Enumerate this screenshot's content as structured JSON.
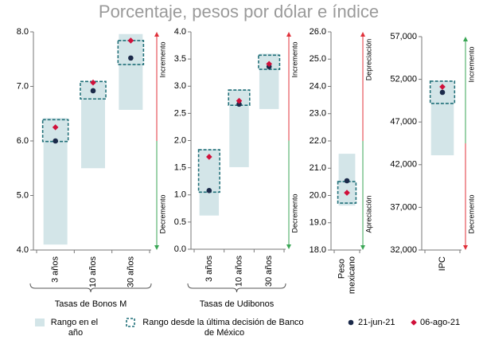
{
  "title": "Porcentaje, pesos por dólar e índice",
  "chart_data": [
    {
      "type": "range",
      "categories": [
        "3 años",
        "10 años",
        "30 años"
      ],
      "xlabel": "Tasas de Bonos M",
      "ylim": [
        4,
        8
      ],
      "yticks": [
        {
          "value": 4,
          "label": "4.0"
        },
        {
          "value": 5,
          "label": "5.0"
        },
        {
          "value": 6,
          "label": "6.0"
        },
        {
          "value": 7,
          "label": "7.0"
        },
        {
          "value": 8,
          "label": "8.0"
        }
      ],
      "up_label": "Incremento",
      "down_label": "Decremento",
      "up_color": "#e0303a",
      "down_color": "#3aa655",
      "series": [
        {
          "name": "Rango en el año",
          "marker": "bar",
          "color": "#d3e5e8",
          "values": [
            [
              4.1,
              6.42
            ],
            [
              5.5,
              7.09
            ],
            [
              6.57,
              7.96
            ]
          ]
        },
        {
          "name": "Rango desde la última decisión de Banco de México",
          "marker": "box",
          "color": "#1f6f78",
          "values": [
            [
              5.99,
              6.39
            ],
            [
              6.77,
              7.09
            ],
            [
              7.4,
              7.84
            ]
          ]
        },
        {
          "name": "21-jun-21",
          "marker": "circle",
          "color": "#1b2a4a",
          "values": [
            6.0,
            6.92,
            7.52
          ]
        },
        {
          "name": "06-ago-21",
          "marker": "diamond",
          "color": "#d0103a",
          "values": [
            6.25,
            7.07,
            7.84
          ]
        }
      ]
    },
    {
      "type": "range",
      "categories": [
        "3 años",
        "10 años",
        "30 años"
      ],
      "xlabel": "Tasas de Udibonos",
      "ylim": [
        0,
        4
      ],
      "yticks": [
        {
          "value": 0,
          "label": "0.0"
        },
        0.5,
        {
          "value": 1,
          "label": "1.0"
        },
        1.5,
        {
          "value": 2,
          "label": "2.0"
        },
        2.5,
        {
          "value": 3,
          "label": "3.0"
        },
        3.5,
        {
          "value": 4,
          "label": "4.0"
        }
      ],
      "up_label": "Incremento",
      "down_label": "Decremento",
      "up_color": "#e0303a",
      "down_color": "#3aa655",
      "series": [
        {
          "marker": "bar",
          "color": "#d3e5e8",
          "values": [
            [
              0.62,
              1.83
            ],
            [
              1.51,
              2.93
            ],
            [
              2.58,
              3.6
            ]
          ]
        },
        {
          "marker": "box",
          "color": "#1f6f78",
          "values": [
            [
              1.05,
              1.83
            ],
            [
              2.65,
              2.93
            ],
            [
              3.31,
              3.57
            ]
          ]
        },
        {
          "marker": "circle",
          "color": "#1b2a4a",
          "values": [
            1.08,
            2.67,
            3.36
          ]
        },
        {
          "marker": "diamond",
          "color": "#d0103a",
          "values": [
            1.7,
            2.73,
            3.41
          ]
        }
      ]
    },
    {
      "type": "range",
      "categories": [
        "Peso mexicano"
      ],
      "ylim": [
        18,
        26
      ],
      "yticks": [
        {
          "value": 18,
          "label": "18.0"
        },
        {
          "value": 19,
          "label": "19.0"
        },
        {
          "value": 20,
          "label": "20.0"
        },
        {
          "value": 21,
          "label": "21.0"
        },
        {
          "value": 22,
          "label": "22.0"
        },
        {
          "value": 23,
          "label": "23.0"
        },
        {
          "value": 24,
          "label": "24.0"
        },
        {
          "value": 25,
          "label": "25.0"
        },
        {
          "value": 26,
          "label": "26.0"
        }
      ],
      "up_label": "Depreciación",
      "down_label": "Apreciación",
      "up_color": "#e0303a",
      "down_color": "#3aa655",
      "series": [
        {
          "marker": "bar",
          "color": "#d3e5e8",
          "values": [
            [
              19.63,
              21.53
            ]
          ]
        },
        {
          "marker": "box",
          "color": "#1f6f78",
          "values": [
            [
              19.72,
              20.51
            ]
          ]
        },
        {
          "marker": "circle",
          "color": "#1b2a4a",
          "values": [
            20.54
          ]
        },
        {
          "marker": "diamond",
          "color": "#d0103a",
          "values": [
            20.1
          ]
        }
      ]
    },
    {
      "type": "range",
      "categories": [
        "IPC"
      ],
      "ylim": [
        32000,
        57000
      ],
      "yticks": [
        {
          "value": 32000,
          "label": "32,000"
        },
        {
          "value": 37000,
          "label": "37,000"
        },
        {
          "value": 42000,
          "label": "42,000"
        },
        {
          "value": 47000,
          "label": "47,000"
        },
        {
          "value": 52000,
          "label": "52,000"
        },
        {
          "value": 57000,
          "label": "57,000"
        }
      ],
      "up_label": "Incremento",
      "down_label": "Decremento",
      "up_color": "#3aa655",
      "down_color": "#e0303a",
      "series": [
        {
          "marker": "bar",
          "color": "#d3e5e8",
          "values": [
            [
              43100,
              51780
            ]
          ]
        },
        {
          "marker": "box",
          "color": "#1f6f78",
          "values": [
            [
              49170,
              51780
            ]
          ]
        },
        {
          "marker": "circle",
          "color": "#1b2a4a",
          "values": [
            50470
          ]
        },
        {
          "marker": "diamond",
          "color": "#d0103a",
          "values": [
            51120
          ]
        }
      ]
    }
  ]
}
